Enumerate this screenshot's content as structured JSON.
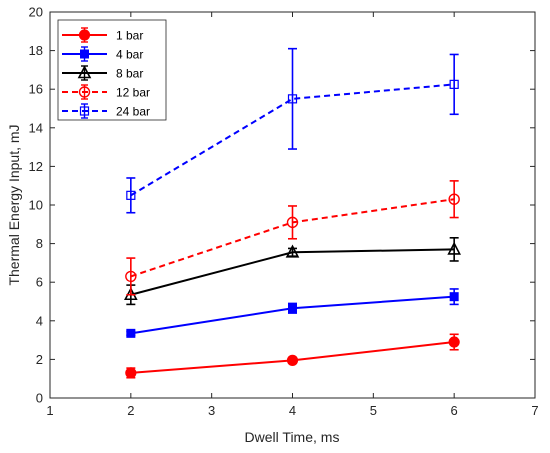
{
  "chart_data": {
    "type": "line",
    "xlabel": "Dwell Time, ms",
    "ylabel": "Thermal Energy Input, mJ",
    "xlim": [
      1,
      7
    ],
    "ylim": [
      0,
      20
    ],
    "xticks": [
      "1",
      "2",
      "3",
      "4",
      "5",
      "6",
      "7"
    ],
    "yticks": [
      "0",
      "2",
      "4",
      "6",
      "8",
      "10",
      "12",
      "14",
      "16",
      "18",
      "20"
    ],
    "grid": false,
    "legend_position": "top-left",
    "series": [
      {
        "name": "1 bar",
        "color": "#ff0000",
        "line_style": "solid",
        "marker": "filled-circle",
        "x": [
          2,
          4,
          6
        ],
        "y": [
          1.3,
          1.95,
          2.9
        ],
        "err": [
          0.25,
          0.15,
          0.4
        ]
      },
      {
        "name": "4 bar",
        "color": "#0000ff",
        "line_style": "solid",
        "marker": "filled-square",
        "x": [
          2,
          4,
          6
        ],
        "y": [
          3.35,
          4.65,
          5.25
        ],
        "err": [
          0.1,
          0.25,
          0.4
        ]
      },
      {
        "name": "8 bar",
        "color": "#000000",
        "line_style": "solid",
        "marker": "open-triangle",
        "x": [
          2,
          4,
          6
        ],
        "y": [
          5.35,
          7.55,
          7.7
        ],
        "err": [
          0.5,
          0.2,
          0.6
        ]
      },
      {
        "name": "12 bar",
        "color": "#ff0000",
        "line_style": "dashed",
        "marker": "open-circle",
        "x": [
          2,
          4,
          6
        ],
        "y": [
          6.3,
          9.1,
          10.3
        ],
        "err": [
          0.95,
          0.85,
          0.95
        ]
      },
      {
        "name": "24 bar",
        "color": "#0000ff",
        "line_style": "dashed",
        "marker": "open-square",
        "x": [
          2,
          4,
          6
        ],
        "y": [
          10.5,
          15.5,
          16.25
        ],
        "err": [
          0.9,
          2.6,
          1.55
        ]
      }
    ]
  }
}
